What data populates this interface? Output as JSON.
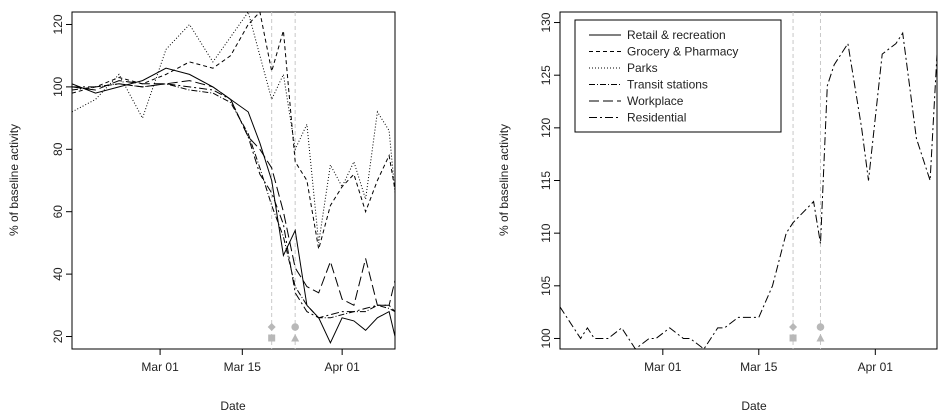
{
  "chart_data": [
    {
      "type": "line",
      "xlabel": "Date",
      "ylabel": "% of baseline activity",
      "ylim": [
        16,
        124
      ],
      "xlim": [
        "2020-02-15",
        "2020-04-10"
      ],
      "x_ticks": [
        {
          "label": "Mar 01",
          "date": "2020-03-01"
        },
        {
          "label": "Mar 15",
          "date": "2020-03-15"
        },
        {
          "label": "Apr 01",
          "date": "2020-04-01"
        }
      ],
      "y_ticks": [
        20,
        40,
        60,
        80,
        100,
        120
      ],
      "reference_lines": [
        "2020-03-20",
        "2020-03-24"
      ],
      "markers": [
        {
          "date": "2020-03-20",
          "shapes": [
            "diamond",
            "square"
          ]
        },
        {
          "date": "2020-03-24",
          "shapes": [
            "circle",
            "triangle"
          ]
        }
      ],
      "series": [
        {
          "name": "Retail & recreation",
          "dash": "solid",
          "x": [
            "2020-02-15",
            "2020-02-19",
            "2020-02-23",
            "2020-02-27",
            "2020-03-02",
            "2020-03-06",
            "2020-03-10",
            "2020-03-13",
            "2020-03-16",
            "2020-03-18",
            "2020-03-20",
            "2020-03-22",
            "2020-03-24",
            "2020-03-26",
            "2020-03-28",
            "2020-03-30",
            "2020-04-01",
            "2020-04-03",
            "2020-04-05",
            "2020-04-07",
            "2020-04-09",
            "2020-04-10"
          ],
          "y": [
            101,
            98,
            100,
            102,
            106,
            104,
            100,
            96,
            92,
            82,
            70,
            46,
            54,
            30,
            26,
            18,
            26,
            25,
            22,
            26,
            28,
            20
          ]
        },
        {
          "name": "Grocery & Pharmacy",
          "dash": "4,3",
          "x": [
            "2020-02-15",
            "2020-02-19",
            "2020-02-23",
            "2020-02-27",
            "2020-03-02",
            "2020-03-06",
            "2020-03-10",
            "2020-03-13",
            "2020-03-16",
            "2020-03-18",
            "2020-03-20",
            "2020-03-22",
            "2020-03-24",
            "2020-03-26",
            "2020-03-28",
            "2020-03-30",
            "2020-04-01",
            "2020-04-03",
            "2020-04-05",
            "2020-04-07",
            "2020-04-09",
            "2020-04-10"
          ],
          "y": [
            98,
            100,
            103,
            101,
            104,
            108,
            106,
            110,
            120,
            124,
            105,
            118,
            76,
            70,
            48,
            62,
            68,
            72,
            60,
            70,
            78,
            67
          ]
        },
        {
          "name": "Parks",
          "dash": "1,2",
          "x": [
            "2020-02-15",
            "2020-02-19",
            "2020-02-23",
            "2020-02-27",
            "2020-03-02",
            "2020-03-06",
            "2020-03-10",
            "2020-03-13",
            "2020-03-16",
            "2020-03-18",
            "2020-03-20",
            "2020-03-22",
            "2020-03-24",
            "2020-03-26",
            "2020-03-28",
            "2020-03-30",
            "2020-04-01",
            "2020-04-03",
            "2020-04-05",
            "2020-04-07",
            "2020-04-09",
            "2020-04-10"
          ],
          "y": [
            92,
            96,
            104,
            90,
            112,
            120,
            108,
            116,
            124,
            110,
            96,
            104,
            80,
            88,
            50,
            75,
            68,
            76,
            64,
            92,
            86,
            66
          ]
        },
        {
          "name": "Transit stations",
          "dash": "6,2,1,2",
          "x": [
            "2020-02-15",
            "2020-02-19",
            "2020-02-23",
            "2020-02-27",
            "2020-03-02",
            "2020-03-06",
            "2020-03-10",
            "2020-03-13",
            "2020-03-16",
            "2020-03-18",
            "2020-03-20",
            "2020-03-22",
            "2020-03-24",
            "2020-03-26",
            "2020-03-28",
            "2020-03-30",
            "2020-04-01",
            "2020-04-03",
            "2020-04-05",
            "2020-04-07",
            "2020-04-09",
            "2020-04-10"
          ],
          "y": [
            99,
            100,
            101,
            100,
            101,
            99,
            98,
            95,
            85,
            74,
            62,
            52,
            36,
            30,
            26,
            26,
            27,
            28,
            28,
            30,
            29,
            28
          ]
        },
        {
          "name": "Workplace",
          "dash": "10,4",
          "x": [
            "2020-02-15",
            "2020-02-19",
            "2020-02-23",
            "2020-02-27",
            "2020-03-02",
            "2020-03-06",
            "2020-03-10",
            "2020-03-13",
            "2020-03-16",
            "2020-03-18",
            "2020-03-20",
            "2020-03-22",
            "2020-03-24",
            "2020-03-26",
            "2020-03-28",
            "2020-03-30",
            "2020-04-01",
            "2020-04-03",
            "2020-04-05",
            "2020-04-07",
            "2020-04-09",
            "2020-04-10"
          ],
          "y": [
            100,
            99,
            102,
            101,
            101,
            102,
            100,
            96,
            84,
            80,
            74,
            60,
            42,
            36,
            34,
            44,
            32,
            30,
            45,
            30,
            30,
            38
          ]
        },
        {
          "name": "Residential",
          "dash": "8,3,2,3",
          "x": [
            "2020-02-15",
            "2020-02-19",
            "2020-02-23",
            "2020-02-27",
            "2020-03-02",
            "2020-03-06",
            "2020-03-10",
            "2020-03-13",
            "2020-03-16",
            "2020-03-18",
            "2020-03-20",
            "2020-03-22",
            "2020-03-24",
            "2020-03-26",
            "2020-03-28",
            "2020-03-30",
            "2020-04-01",
            "2020-04-03",
            "2020-04-05",
            "2020-04-07",
            "2020-04-09",
            "2020-04-10"
          ],
          "y": [
            100,
            100,
            101,
            100,
            101,
            100,
            99,
            96,
            84,
            72,
            66,
            56,
            34,
            28,
            26,
            27,
            28,
            28,
            29,
            30,
            30,
            28
          ]
        }
      ]
    },
    {
      "type": "line",
      "xlabel": "Date",
      "ylabel": "% of baseline activity",
      "ylim": [
        99,
        131
      ],
      "xlim": [
        "2020-02-15",
        "2020-04-10"
      ],
      "x_ticks": [
        {
          "label": "Mar 01",
          "date": "2020-03-01"
        },
        {
          "label": "Mar 15",
          "date": "2020-03-15"
        },
        {
          "label": "Apr 01",
          "date": "2020-04-01"
        }
      ],
      "y_ticks": [
        100,
        105,
        110,
        115,
        120,
        125,
        130
      ],
      "reference_lines": [
        "2020-03-20",
        "2020-03-24"
      ],
      "markers": [
        {
          "date": "2020-03-20",
          "shapes": [
            "diamond",
            "square"
          ]
        },
        {
          "date": "2020-03-24",
          "shapes": [
            "circle",
            "triangle"
          ]
        }
      ],
      "legend": {
        "position": "top-left",
        "entries": [
          {
            "label": "Retail & recreation",
            "dash": "solid"
          },
          {
            "label": "Grocery & Pharmacy",
            "dash": "4,3"
          },
          {
            "label": "Parks",
            "dash": "1,2"
          },
          {
            "label": "Transit stations",
            "dash": "6,2,1,2"
          },
          {
            "label": "Workplace",
            "dash": "10,4"
          },
          {
            "label": "Residential",
            "dash": "8,3,2,3"
          }
        ]
      },
      "series": [
        {
          "name": "Residential",
          "dash": "8,3,2,3",
          "x": [
            "2020-02-15",
            "2020-02-17",
            "2020-02-18",
            "2020-02-19",
            "2020-02-20",
            "2020-02-22",
            "2020-02-24",
            "2020-02-26",
            "2020-02-28",
            "2020-02-29",
            "2020-03-02",
            "2020-03-04",
            "2020-03-05",
            "2020-03-07",
            "2020-03-08",
            "2020-03-09",
            "2020-03-10",
            "2020-03-12",
            "2020-03-14",
            "2020-03-15",
            "2020-03-17",
            "2020-03-19",
            "2020-03-20",
            "2020-03-23",
            "2020-03-24",
            "2020-03-25",
            "2020-03-26",
            "2020-03-28",
            "2020-03-30",
            "2020-03-31",
            "2020-04-02",
            "2020-04-04",
            "2020-04-05",
            "2020-04-07",
            "2020-04-09",
            "2020-04-10"
          ],
          "y": [
            103,
            101,
            100,
            101,
            100,
            100,
            101,
            99,
            100,
            100,
            101,
            100,
            100,
            99,
            100,
            101,
            101,
            102,
            102,
            102,
            105,
            110,
            111,
            113,
            109,
            124,
            126,
            128,
            120,
            115,
            127,
            128,
            129,
            119,
            115,
            127
          ]
        }
      ]
    }
  ]
}
